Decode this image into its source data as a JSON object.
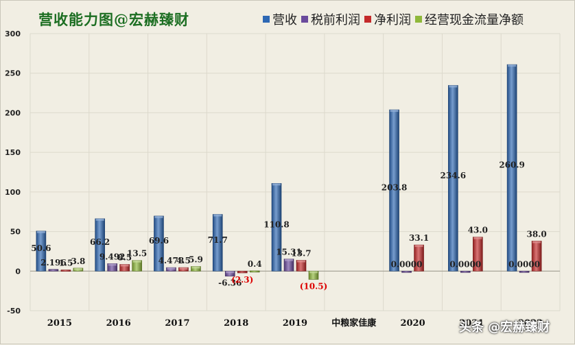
{
  "title": "营收能力图@宏赫臻财",
  "watermark": "头条 @宏赫臻财",
  "colors": {
    "revenue": "#2e68b4",
    "pretax": "#6a4a9c",
    "net": "#c42a2a",
    "cashflow": "#8fb83a",
    "background": "#f1eee3",
    "grid": "#dcd9cc",
    "negative_label": "#dd0000"
  },
  "chart_data": {
    "type": "bar",
    "ylim": [
      -50,
      300
    ],
    "yticks": [
      -50,
      0,
      50,
      100,
      150,
      200,
      250,
      300
    ],
    "grid": true,
    "legend_position": "top",
    "groups": [
      {
        "label": "2015",
        "values": [
          50.6,
          2.196,
          1.5,
          3.8
        ],
        "labels": [
          "50.6",
          "2.196",
          "1.5",
          "3.8"
        ]
      },
      {
        "label": "2016",
        "values": [
          66.2,
          9.492,
          8.5,
          13.5
        ],
        "labels": [
          "66.2",
          "9.492",
          "8.5",
          "13.5"
        ]
      },
      {
        "label": "2017",
        "values": [
          69.6,
          4.478,
          4.5,
          5.9
        ],
        "labels": [
          "69.6",
          "4.478",
          "4.5",
          "5.9"
        ]
      },
      {
        "label": "2018",
        "values": [
          71.7,
          -6.36,
          -2.3,
          0.4
        ],
        "labels": [
          "71.7",
          "-6.36",
          "(2.3)",
          "0.4"
        ]
      },
      {
        "label": "2019",
        "values": [
          110.8,
          15.31,
          13.7,
          -10.5
        ],
        "labels": [
          "110.8",
          "15.31",
          "13.7",
          "(10.5)"
        ]
      },
      {
        "label": "中粮家佳康",
        "values": [
          null,
          null,
          null,
          null
        ],
        "labels": [
          "",
          "",
          "",
          ""
        ]
      },
      {
        "label": "2020",
        "values": [
          203.8,
          0,
          33.1,
          null
        ],
        "labels": [
          "203.8",
          "0.0000",
          "33.1",
          ""
        ]
      },
      {
        "label": "2021",
        "values": [
          234.6,
          0,
          43.0,
          null
        ],
        "labels": [
          "234.6",
          "0.0000",
          "43.0",
          ""
        ]
      },
      {
        "label": "2022",
        "values": [
          260.9,
          0,
          38.0,
          null
        ],
        "labels": [
          "260.9",
          "0.0000",
          "38.0",
          ""
        ]
      }
    ],
    "series": [
      {
        "name": "营收",
        "color_key": "revenue"
      },
      {
        "name": "税前利润",
        "color_key": "pretax"
      },
      {
        "name": "净利润",
        "color_key": "net"
      },
      {
        "name": "经营现金流量净额",
        "color_key": "cashflow"
      }
    ]
  }
}
